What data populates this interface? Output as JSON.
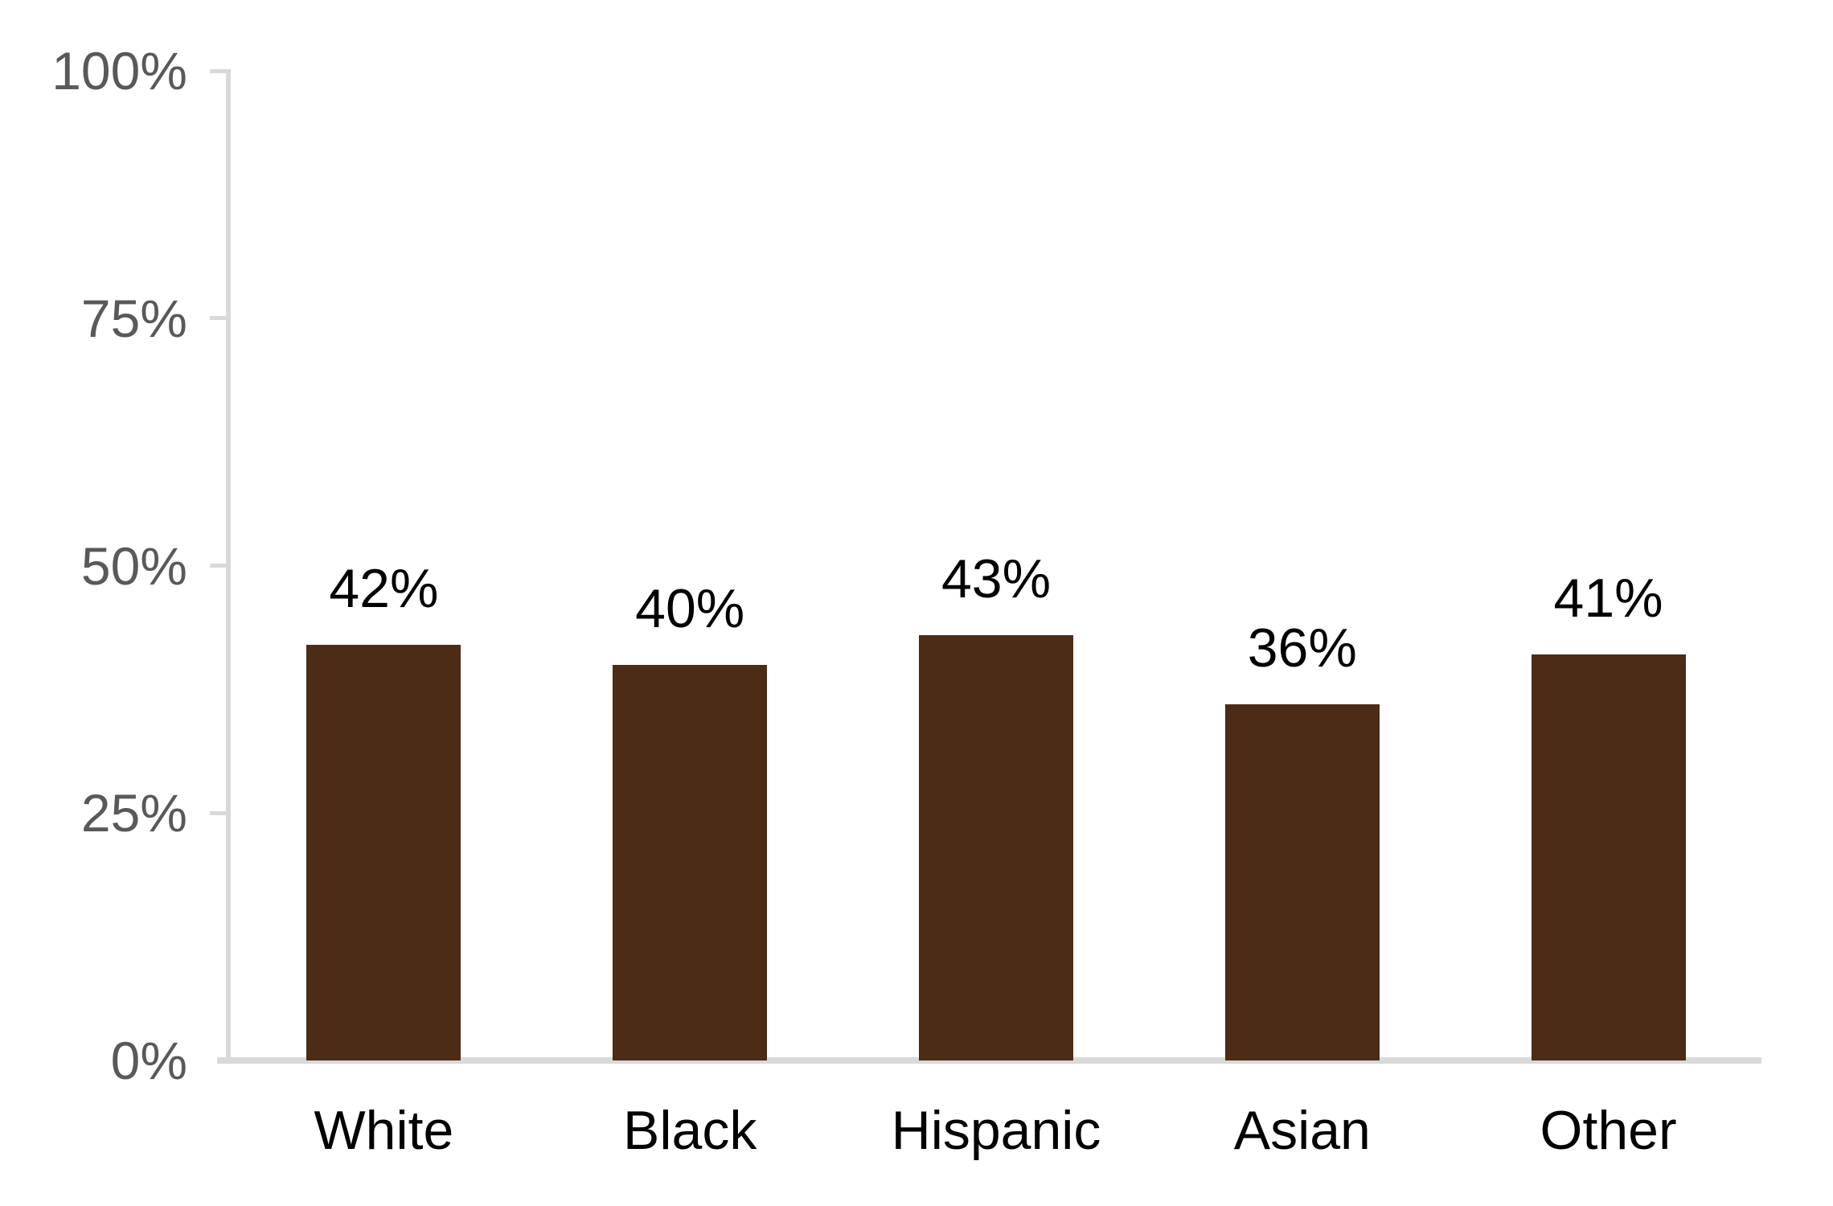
{
  "chart_data": {
    "type": "bar",
    "categories": [
      "White",
      "Black",
      "Hispanic",
      "Asian",
      "Other"
    ],
    "values": [
      42,
      40,
      43,
      36,
      41
    ],
    "value_labels": [
      "42%",
      "40%",
      "43%",
      "36%",
      "41%"
    ],
    "title": "",
    "xlabel": "",
    "ylabel": "",
    "ylim": [
      0,
      100
    ],
    "y_ticks": [
      {
        "value": 0,
        "label": "0%"
      },
      {
        "value": 25,
        "label": "25%"
      },
      {
        "value": 50,
        "label": "50%"
      },
      {
        "value": 75,
        "label": "75%"
      },
      {
        "value": 100,
        "label": "100%"
      }
    ],
    "grid": false,
    "legend": "none",
    "colors": {
      "bar": "#4C2B17",
      "axis_line": "#D9D9D9",
      "tick_label": "#595959",
      "value_label": "#000000",
      "category_label": "#000000",
      "background": "#FFFFFF"
    }
  }
}
